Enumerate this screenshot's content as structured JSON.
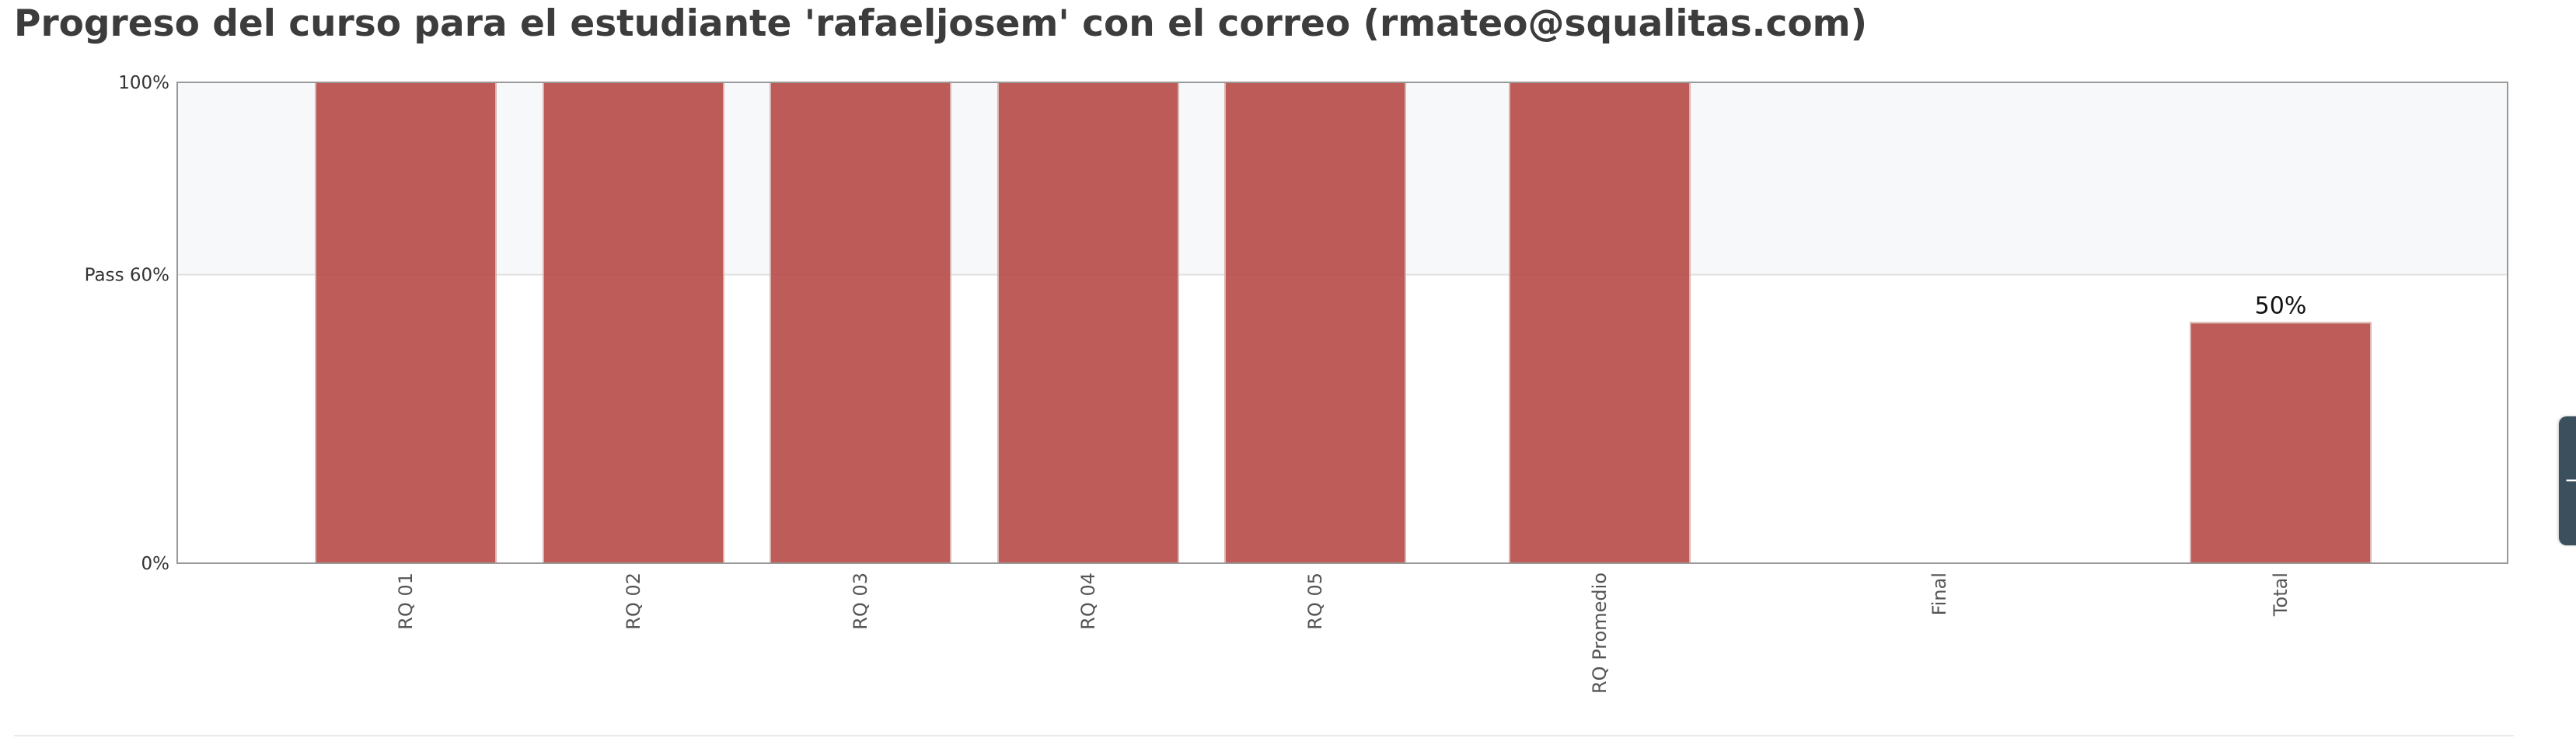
{
  "page": {
    "title": "Progreso del curso para el estudiante 'rafaeljosem' con el correo (rmateo@squalitas.com)"
  },
  "colors": {
    "bar": "#b9504c",
    "bar_stroke": "#d9b0ad",
    "pass_band": "#f7f8fa",
    "plot_border": "#999999",
    "grid": "#e0e0e0",
    "side_tab": "#3b4f5c"
  },
  "side_tab": {
    "icon": "collapse-icon"
  },
  "chart_data": {
    "type": "bar",
    "categories": [
      "RQ 01",
      "RQ 02",
      "RQ 03",
      "RQ 04",
      "RQ 05",
      "RQ Promedio",
      "Final",
      "Total"
    ],
    "values": [
      100,
      100,
      100,
      100,
      100,
      100,
      null,
      50
    ],
    "data_labels": [
      null,
      null,
      null,
      null,
      null,
      null,
      null,
      "50%"
    ],
    "ylim": [
      0,
      100
    ],
    "yticks": [
      {
        "value": 0,
        "label": "0%"
      },
      {
        "value": 60,
        "label": "Pass 60%"
      },
      {
        "value": 100,
        "label": "100%"
      }
    ],
    "pass_threshold": 60,
    "pass_band": [
      60,
      100
    ],
    "xlabel_rotation": "vertical",
    "grid": true,
    "legend": "none"
  }
}
